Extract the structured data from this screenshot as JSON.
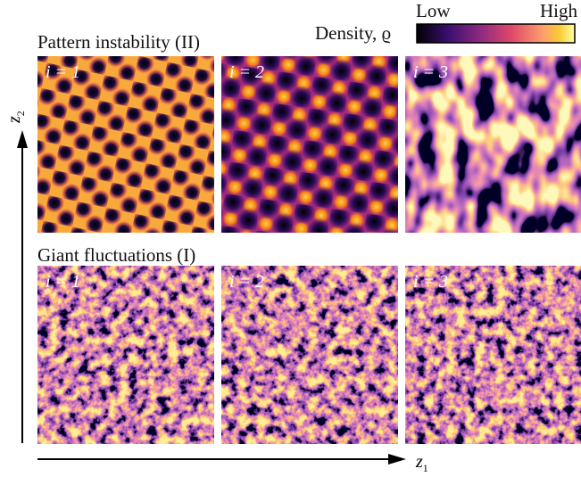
{
  "figure": {
    "colorbar": {
      "label": "Density, ϱ",
      "low": "Low",
      "high": "High"
    },
    "rows": [
      {
        "title": "Pattern instability (II)",
        "panels": [
          "i = 1",
          "i = 2",
          "i = 3"
        ]
      },
      {
        "title": "Giant fluctuations (I)",
        "panels": [
          "i = 1",
          "i = 2",
          "i = 3"
        ]
      }
    ],
    "axes": {
      "x": {
        "symbol": "z",
        "subscript": "1"
      },
      "y": {
        "symbol": "z",
        "subscript": "2"
      }
    }
  }
}
